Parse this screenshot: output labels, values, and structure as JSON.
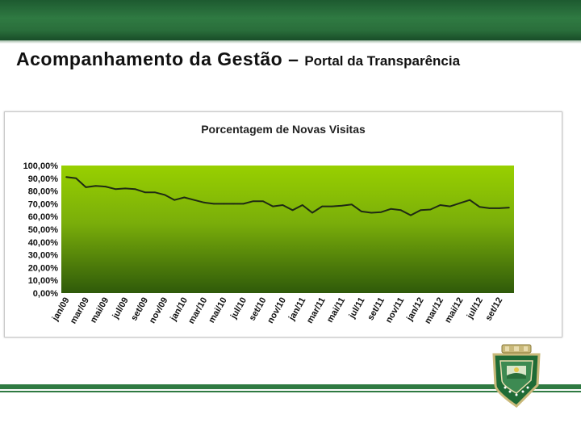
{
  "header": {
    "title_main": "Acompanhamento da Gestão – ",
    "title_sub": "Portal da Transparência"
  },
  "colors": {
    "brand_green": "#2f7a42",
    "plot_top": "#98d000",
    "plot_bottom": "#2f5a0a",
    "series_line": "#1f2a14"
  },
  "chart_data": {
    "type": "line",
    "title": "Porcentagem de Novas Visitas",
    "ylim": [
      0,
      100
    ],
    "yticks": [
      0,
      10,
      20,
      30,
      40,
      50,
      60,
      70,
      80,
      90,
      100
    ],
    "ytick_labels": [
      "0,00%",
      "10,00%",
      "20,00%",
      "30,00%",
      "40,00%",
      "50,00%",
      "60,00%",
      "70,00%",
      "80,00%",
      "90,00%",
      "100,00%"
    ],
    "xtick_labels": [
      "jan/09",
      "mar/09",
      "mai/09",
      "jul/09",
      "set/09",
      "nov/09",
      "jan/10",
      "mar/10",
      "mai/10",
      "jul/10",
      "set/10",
      "nov/10",
      "jan/11",
      "mar/11",
      "mai/11",
      "jul/11",
      "set/11",
      "nov/11",
      "jan/12",
      "mar/12",
      "mai/12",
      "jul/12",
      "set/12"
    ],
    "x": [
      "jan/09",
      "fev/09",
      "mar/09",
      "abr/09",
      "mai/09",
      "jun/09",
      "jul/09",
      "ago/09",
      "set/09",
      "out/09",
      "nov/09",
      "dez/09",
      "jan/10",
      "fev/10",
      "mar/10",
      "abr/10",
      "mai/10",
      "jun/10",
      "jul/10",
      "ago/10",
      "set/10",
      "out/10",
      "nov/10",
      "dez/10",
      "jan/11",
      "fev/11",
      "mar/11",
      "abr/11",
      "mai/11",
      "jun/11",
      "jul/11",
      "ago/11",
      "set/11",
      "out/11",
      "nov/11",
      "dez/11",
      "jan/12",
      "fev/12",
      "mar/12",
      "abr/12",
      "mai/12",
      "jun/12",
      "jul/12",
      "ago/12",
      "set/12",
      "out/12"
    ],
    "values": [
      91,
      90,
      83,
      84,
      83.5,
      81.5,
      82,
      81.5,
      79,
      79,
      77,
      73,
      75,
      73,
      71,
      70,
      70,
      70,
      70,
      72,
      72,
      68,
      69,
      65,
      69,
      63,
      68,
      68,
      68.5,
      69.5,
      64,
      63,
      63.5,
      66,
      65,
      61,
      65,
      65.5,
      69,
      68,
      70.5,
      73,
      67.5,
      66.5,
      66.5,
      67
    ],
    "grid": false,
    "legend": "none"
  }
}
